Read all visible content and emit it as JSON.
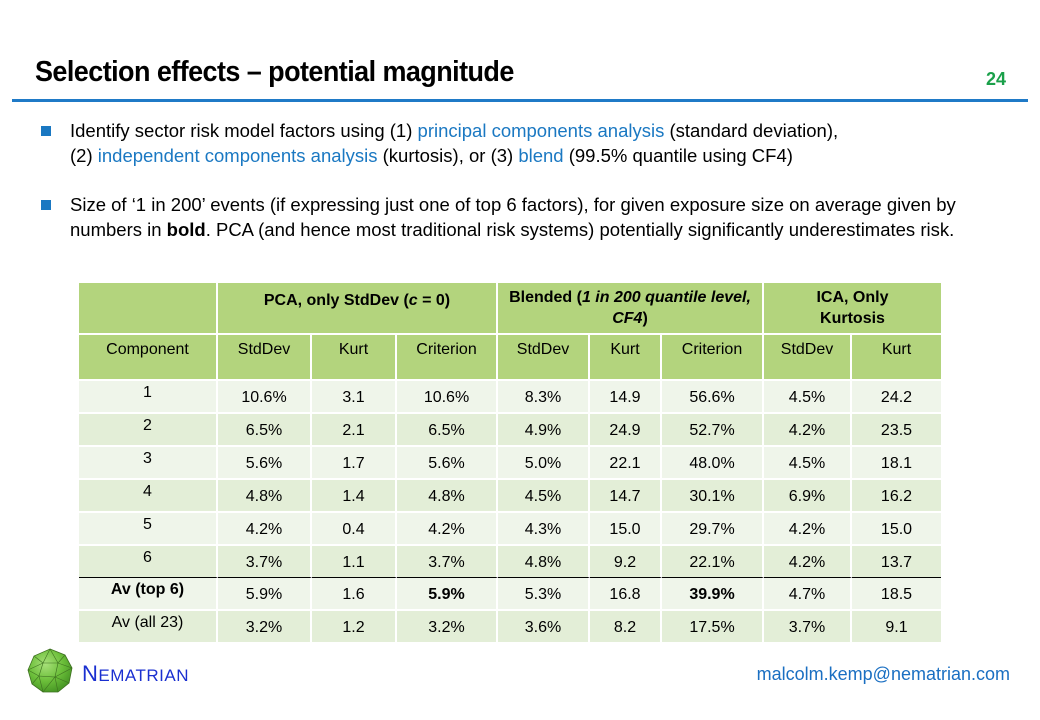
{
  "slide": {
    "title": "Selection effects – potential magnitude",
    "page_number": "24"
  },
  "bullets": [
    {
      "parts": [
        {
          "text": "Identify sector risk model factors using (1) ",
          "style": "normal"
        },
        {
          "text": "principal components analysis",
          "style": "highlight"
        },
        {
          "text": " (standard deviation),",
          "style": "normal"
        },
        {
          "text": "(2) ",
          "style": "normal"
        },
        {
          "text": "independent components analysis",
          "style": "highlight"
        },
        {
          "text": " (kurtosis), or (3) ",
          "style": "normal"
        },
        {
          "text": "blend",
          "style": "highlight"
        },
        {
          "text": " (99.5% quantile using CF4)",
          "style": "normal"
        }
      ]
    },
    {
      "parts": [
        {
          "text": "Size of ‘1 in 200’ events (if expressing just one of top 6 factors), for given exposure size on average given by numbers in ",
          "style": "normal"
        },
        {
          "text": "bold",
          "style": "bold"
        },
        {
          "text": ". PCA (and hence most traditional risk systems) potentially significantly underestimates risk.",
          "style": "normal"
        }
      ]
    }
  ],
  "table": {
    "group_headers": {
      "pca_a": "PCA, only StdDev (",
      "pca_c": "c",
      "pca_b": " = 0)",
      "blend_a": "Blended (",
      "blend_b": "1 in 200 quantile level, CF4",
      "blend_c": ")",
      "ica": "ICA, Only Kurtosis"
    },
    "columns": [
      "Component",
      "StdDev",
      "Kurt",
      "Criterion",
      "StdDev",
      "Kurt",
      "Criterion",
      "StdDev",
      "Kurt"
    ],
    "rows": [
      {
        "label": "1",
        "values": [
          "10.6%",
          "3.1",
          "10.6%",
          "8.3%",
          "14.9",
          "56.6%",
          "4.5%",
          "24.2"
        ]
      },
      {
        "label": "2",
        "values": [
          "6.5%",
          "2.1",
          "6.5%",
          "4.9%",
          "24.9",
          "52.7%",
          "4.2%",
          "23.5"
        ]
      },
      {
        "label": "3",
        "values": [
          "5.6%",
          "1.7",
          "5.6%",
          "5.0%",
          "22.1",
          "48.0%",
          "4.5%",
          "18.1"
        ]
      },
      {
        "label": "4",
        "values": [
          "4.8%",
          "1.4",
          "4.8%",
          "4.5%",
          "14.7",
          "30.1%",
          "6.9%",
          "16.2"
        ]
      },
      {
        "label": "5",
        "values": [
          "4.2%",
          "0.4",
          "4.2%",
          "4.3%",
          "15.0",
          "29.7%",
          "4.2%",
          "15.0"
        ]
      },
      {
        "label": "6",
        "values": [
          "3.7%",
          "1.1",
          "3.7%",
          "4.8%",
          "9.2",
          "22.1%",
          "4.2%",
          "13.7"
        ]
      },
      {
        "label": "Av (top 6)",
        "values": [
          "5.9%",
          "1.6",
          "5.9%",
          "5.3%",
          "16.8",
          "39.9%",
          "4.7%",
          "18.5"
        ]
      },
      {
        "label": "Av (all 23)",
        "values": [
          "3.2%",
          "1.2",
          "3.2%",
          "3.6%",
          "8.2",
          "17.5%",
          "3.7%",
          "9.1"
        ]
      }
    ]
  },
  "footer": {
    "logo_icon": "geodesic-sphere-icon",
    "brand_initial": "N",
    "brand_rest": "EMATRIAN",
    "email": "malcolm.kemp@nematrian.com"
  },
  "colors": {
    "title_rule": "#1f7ac7",
    "page_number": "#1aa04a",
    "highlight": "#1a78c2",
    "header_fill": "#b3d47d",
    "row_light": "#eff5ea",
    "row_dark": "#e3eed7",
    "brand": "#1a2fd0"
  }
}
